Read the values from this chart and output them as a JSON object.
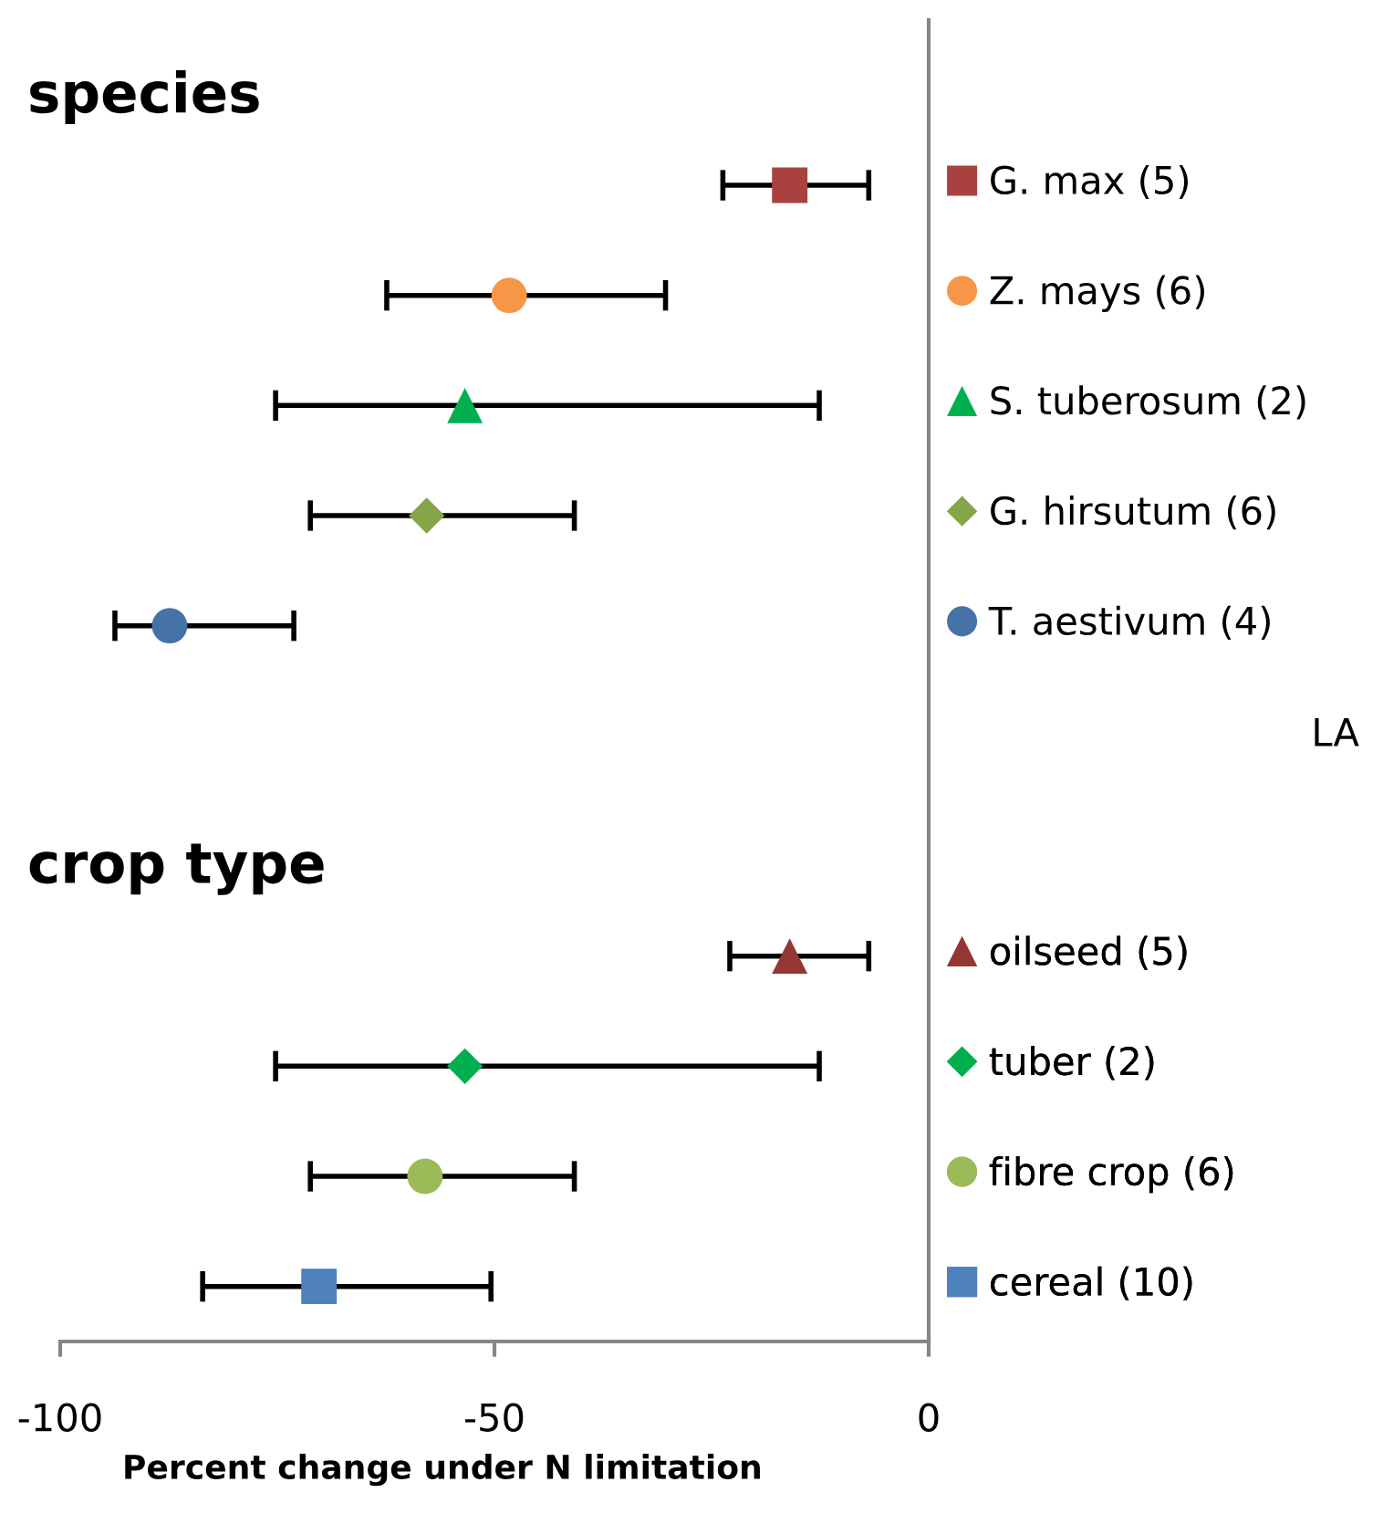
{
  "chart_data": {
    "type": "scatter",
    "orientation": "horizontal",
    "xlabel": "Percent change under N limitation",
    "annotations": [
      "species",
      "crop type",
      "LA"
    ],
    "categories": [
      null,
      null,
      null,
      null,
      null,
      null,
      null,
      null,
      null,
      null,
      null,
      null
    ],
    "xlim": [
      -100,
      0
    ],
    "xticks": [
      -100,
      -50,
      0
    ],
    "grid": false,
    "legend": "right",
    "series": [
      {
        "name": "G. max (5)",
        "color": "#a9423f",
        "marker": "square",
        "values": [
          null,
          -16.0,
          null,
          null,
          null,
          null,
          null,
          null,
          null,
          null,
          null,
          null
        ],
        "errors": [
          null,
          [
            -23.7,
            -6.9
          ],
          null,
          null,
          null,
          null,
          null,
          null,
          null,
          null,
          null,
          null
        ]
      },
      {
        "name": "Z. mays (6)",
        "color": "#f79646",
        "marker": "circle",
        "values": [
          null,
          null,
          -48.3,
          null,
          null,
          null,
          null,
          null,
          null,
          null,
          null,
          null
        ],
        "errors": [
          null,
          null,
          [
            -62.4,
            -30.3
          ],
          null,
          null,
          null,
          null,
          null,
          null,
          null,
          null,
          null
        ]
      },
      {
        "name": "S. tuberosum (2)",
        "color": "#00b050",
        "marker": "triangle",
        "values": [
          null,
          null,
          null,
          -53.4,
          null,
          null,
          null,
          null,
          null,
          null,
          null,
          null
        ],
        "errors": [
          null,
          null,
          null,
          [
            -75.2,
            -12.6
          ],
          null,
          null,
          null,
          null,
          null,
          null,
          null,
          null
        ]
      },
      {
        "name": "G. hirsutum (6)",
        "color": "#86a44a",
        "marker": "diamond",
        "values": [
          null,
          null,
          null,
          null,
          -57.8,
          null,
          null,
          null,
          null,
          null,
          null,
          null
        ],
        "errors": [
          null,
          null,
          null,
          null,
          [
            -71.2,
            -40.8
          ],
          null,
          null,
          null,
          null,
          null,
          null,
          null
        ]
      },
      {
        "name": "T. aestivum (4)",
        "color": "#4572a7",
        "marker": "circle",
        "values": [
          null,
          null,
          null,
          null,
          null,
          -87.4,
          null,
          null,
          null,
          null,
          null,
          null
        ],
        "errors": [
          null,
          null,
          null,
          null,
          null,
          [
            -93.7,
            -73.1
          ],
          null,
          null,
          null,
          null,
          null,
          null
        ]
      },
      {
        "name": "oilseed (5)",
        "color": "#943634",
        "marker": "triangle",
        "values": [
          null,
          null,
          null,
          null,
          null,
          null,
          null,
          null,
          -16.0,
          null,
          null,
          null
        ],
        "errors": [
          null,
          null,
          null,
          null,
          null,
          null,
          null,
          null,
          [
            -22.9,
            -6.9
          ],
          null,
          null,
          null
        ]
      },
      {
        "name": "tuber (2)",
        "color": "#00b050",
        "marker": "diamond",
        "values": [
          null,
          null,
          null,
          null,
          null,
          null,
          null,
          null,
          null,
          -53.4,
          null,
          null
        ],
        "errors": [
          null,
          null,
          null,
          null,
          null,
          null,
          null,
          null,
          null,
          [
            -75.2,
            -12.6
          ],
          null,
          null
        ]
      },
      {
        "name": "fibre crop (6)",
        "color": "#9bbb59",
        "marker": "circle",
        "values": [
          null,
          null,
          null,
          null,
          null,
          null,
          null,
          null,
          null,
          null,
          -58.0,
          null
        ],
        "errors": [
          null,
          null,
          null,
          null,
          null,
          null,
          null,
          null,
          null,
          null,
          [
            -71.2,
            -40.8
          ],
          null
        ]
      },
      {
        "name": "cereal (10)",
        "color": "#4f81bd",
        "marker": "square",
        "values": [
          null,
          null,
          null,
          null,
          null,
          null,
          null,
          null,
          null,
          null,
          null,
          -70.2
        ],
        "errors": [
          null,
          null,
          null,
          null,
          null,
          null,
          null,
          null,
          null,
          null,
          null,
          [
            -83.6,
            -50.4
          ]
        ]
      }
    ]
  }
}
